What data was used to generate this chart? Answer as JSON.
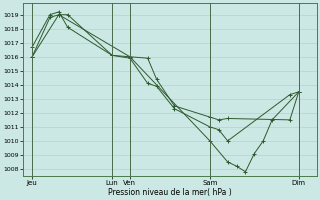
{
  "bg_color": "#cce8e4",
  "grid_color": "#aacccc",
  "line_color": "#2d5a2d",
  "xlabel": "Pression niveau de la mer( hPa )",
  "ylim": [
    1007.5,
    1019.8
  ],
  "yticks": [
    1008,
    1009,
    1010,
    1011,
    1012,
    1013,
    1014,
    1015,
    1016,
    1017,
    1018,
    1019
  ],
  "xlim": [
    0,
    16.5
  ],
  "xtick_positions": [
    0.5,
    5.0,
    6.0,
    10.5,
    15.5
  ],
  "xtick_labels": [
    "Jeu",
    "Lun",
    "Ven",
    "Sam",
    "Dim"
  ],
  "vline_positions": [
    0.5,
    5.0,
    6.0,
    10.5,
    15.5
  ],
  "line1_x": [
    0.5,
    1.5,
    2.0,
    2.5,
    5.0,
    6.0,
    7.0,
    7.5,
    8.5,
    10.5,
    11.0,
    11.5,
    15.0,
    15.5
  ],
  "line1_y": [
    1016.0,
    1018.8,
    1019.0,
    1019.0,
    1016.1,
    1015.9,
    1014.1,
    1013.9,
    1012.3,
    1011.0,
    1010.8,
    1010.0,
    1013.3,
    1013.5
  ],
  "line2_x": [
    0.5,
    1.5,
    2.0,
    2.5,
    5.0,
    6.0,
    7.0,
    7.5,
    8.5,
    10.5,
    11.0,
    11.5,
    15.0,
    15.5
  ],
  "line2_y": [
    1016.7,
    1019.0,
    1019.2,
    1018.1,
    1016.1,
    1016.0,
    1015.9,
    1014.4,
    1012.5,
    1011.7,
    1011.5,
    1011.6,
    1011.5,
    1013.5
  ],
  "line3_x": [
    0.5,
    2.0,
    6.0,
    10.5,
    11.5,
    12.0,
    12.5,
    13.0,
    13.5,
    14.0,
    15.5
  ],
  "line3_y": [
    1016.0,
    1019.0,
    1016.0,
    1010.0,
    1008.5,
    1008.2,
    1007.8,
    1009.1,
    1010.0,
    1011.5,
    1013.5
  ],
  "spine_color": "#4a7a4a"
}
